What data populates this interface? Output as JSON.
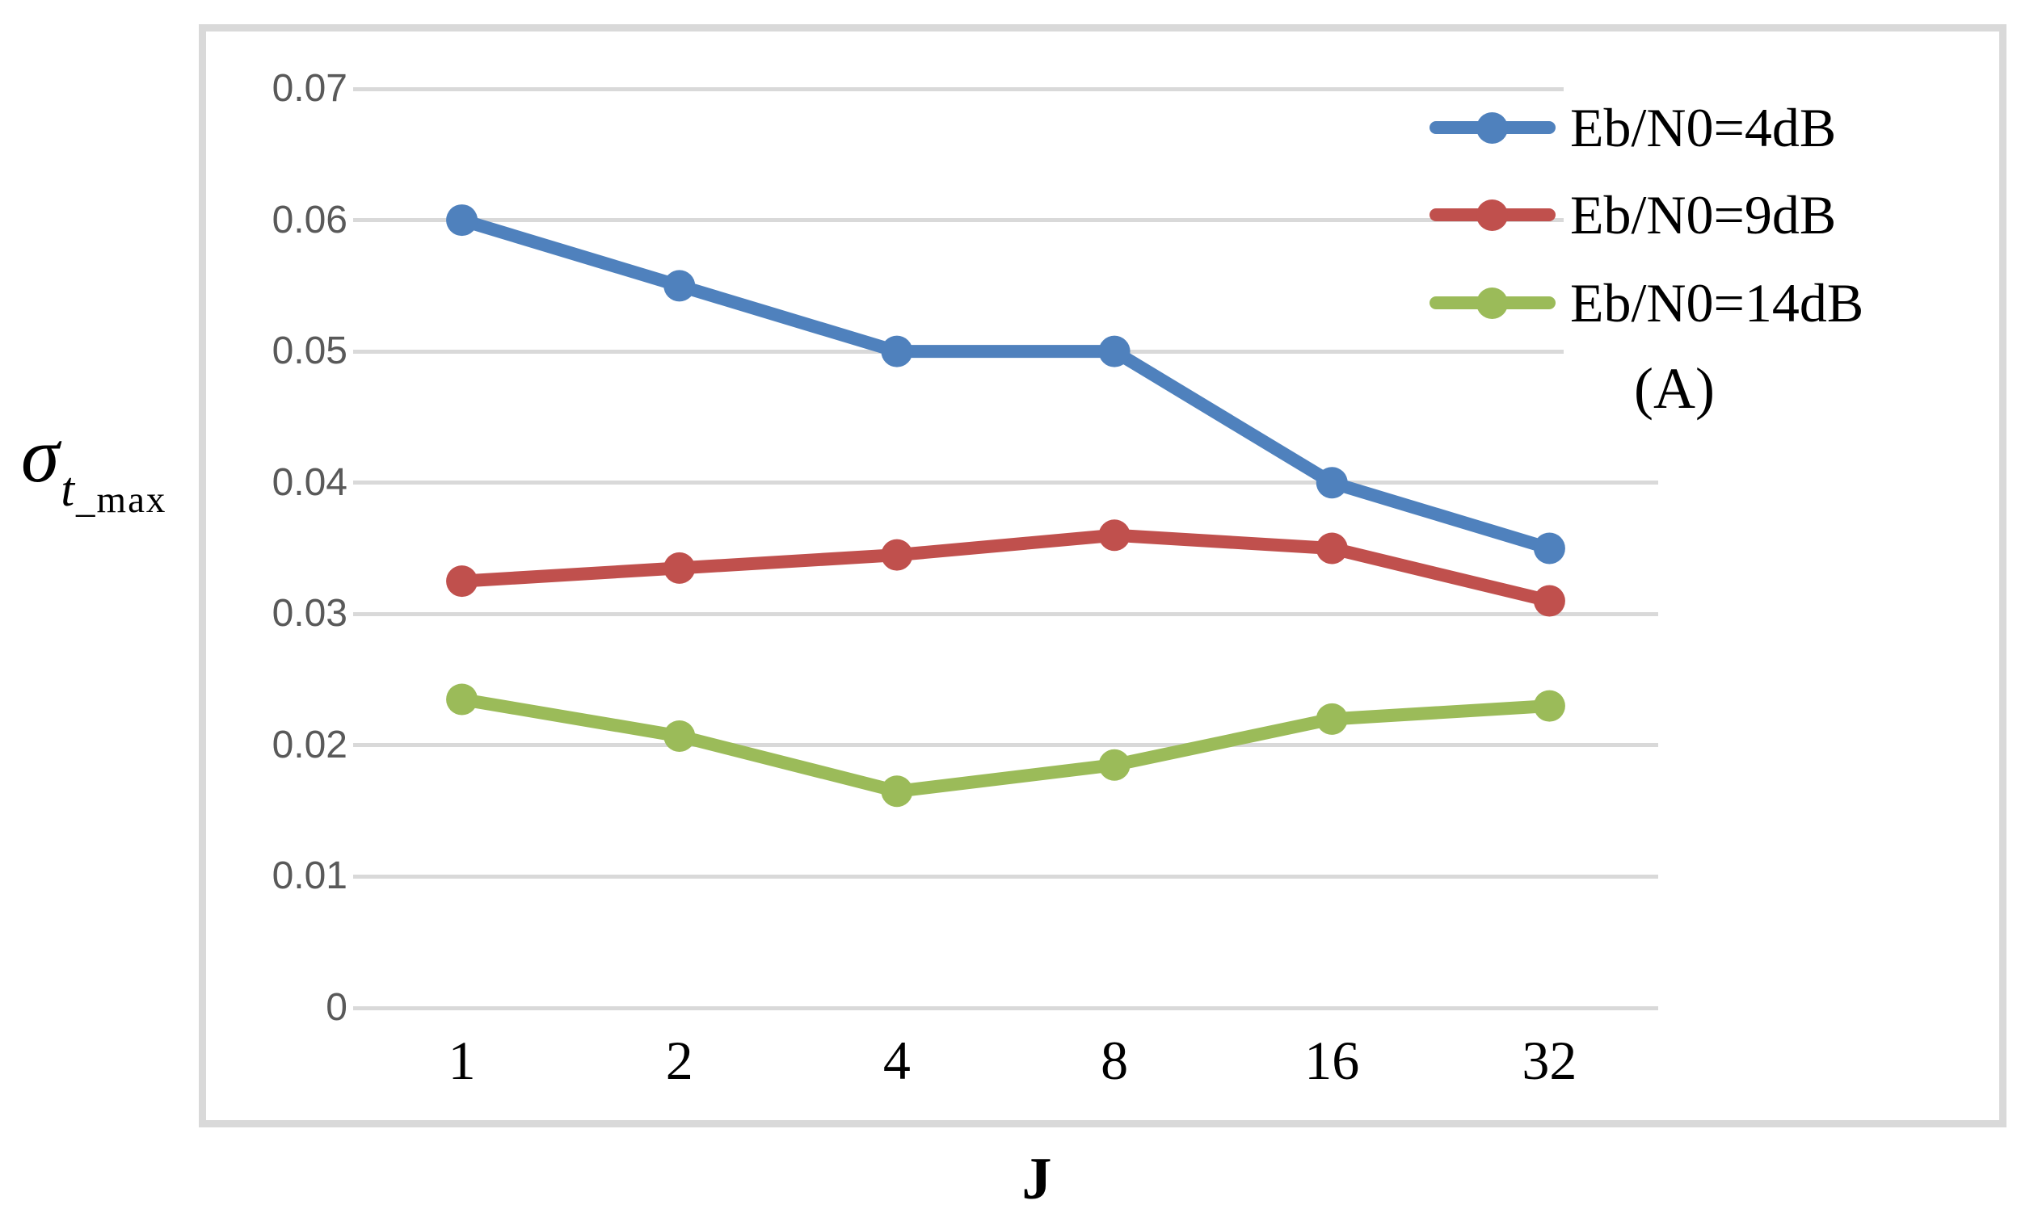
{
  "figure": {
    "y_axis_label": {
      "sigma": "σ",
      "subscript_t": "t",
      "subscript_max": "_max"
    },
    "panel_label": "(A)"
  },
  "chart_data": {
    "type": "line",
    "categories": [
      "1",
      "2",
      "4",
      "8",
      "16",
      "32"
    ],
    "series": [
      {
        "name": "Eb/N0=4dB",
        "color": "#4F81BD",
        "values": [
          0.06,
          0.055,
          0.05,
          0.05,
          0.04,
          0.035
        ]
      },
      {
        "name": "Eb/N0=9dB",
        "color": "#C0504D",
        "values": [
          0.0325,
          0.0335,
          0.0345,
          0.036,
          0.035,
          0.031
        ]
      },
      {
        "name": "Eb/N0=14dB",
        "color": "#9BBB59",
        "values": [
          0.0235,
          0.0207,
          0.0165,
          0.0185,
          0.022,
          0.023
        ]
      }
    ],
    "xlabel": "J",
    "ylabel": "σ_t_max",
    "ylim": [
      0,
      0.07
    ],
    "ytick_labels": [
      "0",
      "0.01",
      "0.02",
      "0.03",
      "0.04",
      "0.05",
      "0.06",
      "0.07"
    ],
    "ytick_values": [
      0,
      0.01,
      0.02,
      0.03,
      0.04,
      0.05,
      0.06,
      0.07
    ],
    "grid": "horizontal",
    "legend_position": "top-right",
    "styles": {
      "gridline_color": "#D9D9D9",
      "frame_color": "#D9D9D9",
      "ytick_text_color": "#595959",
      "axis_text_color": "#000000",
      "background": "#FFFFFF"
    }
  }
}
